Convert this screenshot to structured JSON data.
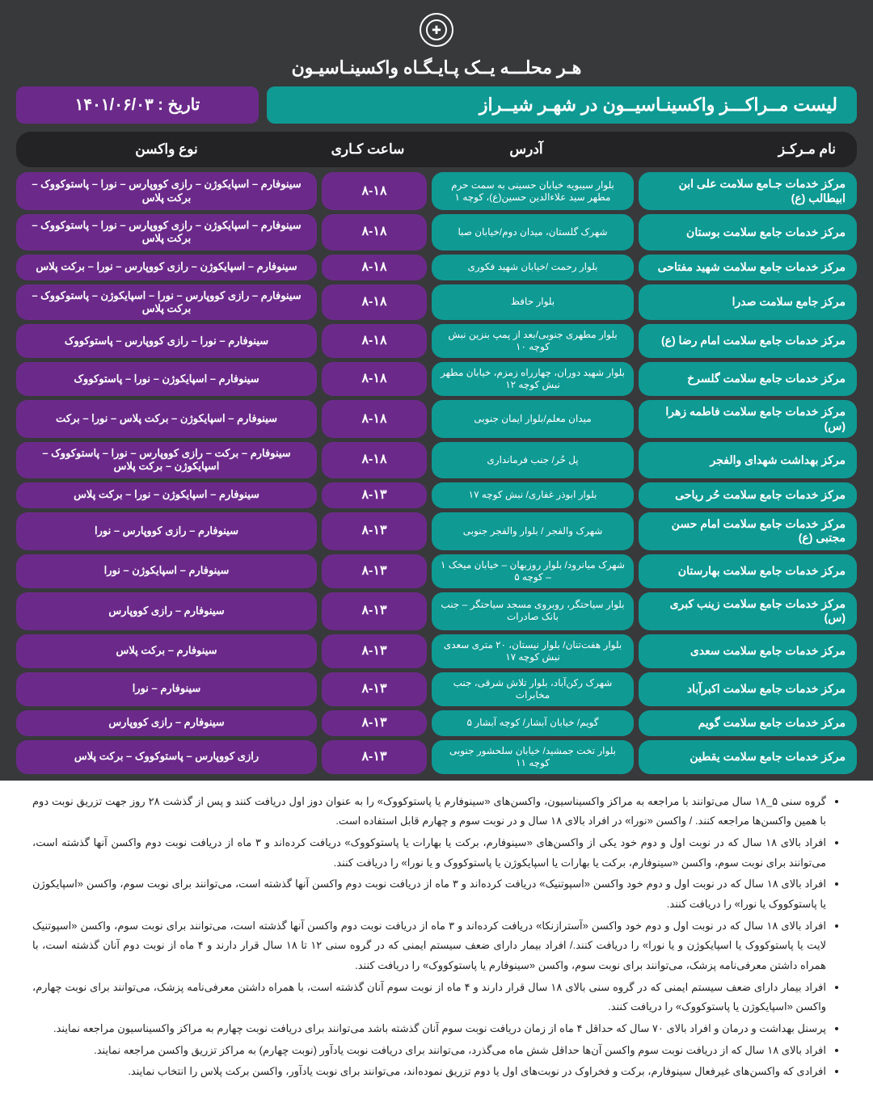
{
  "slogan": "هـر محلـــه یــک پـایـگـاه واکسینـاسیـون",
  "title": "لیست مــراکـــز واکسینـاسیــون در شهـر شیــراز",
  "date_label": "تاریخ : ۱۴۰۱/۰۶/۰۳",
  "columns": {
    "center": "نام مـرکـز",
    "address": "آدرس",
    "hours": "ساعت کـاری",
    "vaccine": "نوع واکسن"
  },
  "colors": {
    "bg": "#38393b",
    "teal": "#0f9a94",
    "purple": "#6b2a8a",
    "header": "#232325",
    "white": "#ffffff"
  },
  "rows": [
    {
      "center": "مرکز خدمات جـامع سلامت علی ابن ابیطالب (ع)",
      "address": "بلوار سیبویه خیابان حسینی به سمت حرم مطهر سید علاء‌الدین حسین(ع)، کوچه ۱",
      "hours": "۸-۱۸",
      "vaccine": "سینوفارم – اسپایکوژن – رازی کووپارس – نورا – پاستوکووک – برکت پلاس"
    },
    {
      "center": "مرکز خدمات جامع سلامت بوستان",
      "address": "شهرک گلستان، میدان دوم/خیابان صبا",
      "hours": "۸-۱۸",
      "vaccine": "سینوفارم – اسپایکوژن – رازی کووپارس – نورا – پاستوکووک – برکت پلاس"
    },
    {
      "center": "مرکز خدمات جامع سلامت شهید مفتاحی",
      "address": "بلوار رحمت /خیابان شهید فکوری",
      "hours": "۸-۱۸",
      "vaccine": "سینوفارم – اسپایکوژن – رازی کووپارس – نورا – برکت پلاس"
    },
    {
      "center": "مرکز جامع سلامت صدرا",
      "address": "بلوار حافظ",
      "hours": "۸-۱۸",
      "vaccine": "سینوفارم – رازی کووپارس – نورا – اسپایکوژن – پاستوکووک – برکت پلاس"
    },
    {
      "center": "مرکز خدمات جامع سلامت امام رضا (ع)",
      "address": "بلوار مطهری جنوبی/بعد از پمپ بنزین نبش کوچه ۱۰",
      "hours": "۸-۱۸",
      "vaccine": "سینوفارم – نورا – رازی کووپارس – پاستوکووک"
    },
    {
      "center": "مرکز خدمات جامع سلامت گلسرخ",
      "address": "بلوار شهید دوران، چهارراه زمزم، خیابان مطهر نبش کوچه ۱۲",
      "hours": "۸-۱۸",
      "vaccine": "سینوفارم – اسپایکوژن – نورا – پاستوکووک"
    },
    {
      "center": "مرکز خدمات جامع سلامت فاطمه زهرا (س)",
      "address": "میدان معلم/بلوار ایمان جنوبی",
      "hours": "۸-۱۸",
      "vaccine": "سینوفارم – اسپایکوژن – برکت پلاس – نورا – برکت"
    },
    {
      "center": "مرکز بهداشت شهدای والفجر",
      "address": "پل حُر/ جنب فرمانداری",
      "hours": "۸-۱۸",
      "vaccine": "سینوفارم – برکت – رازی کووپارس – نورا – پاستوکووک – اسپایکوژن – برکت پلاس"
    },
    {
      "center": "مرکز خدمات جامع سلامت حُر ریاحی",
      "address": "بلوار ابوذر غفاری/ نبش کوچه ۱۷",
      "hours": "۸-۱۳",
      "vaccine": "سینوفارم – اسپایکوژن – نورا – برکت پلاس"
    },
    {
      "center": "مرکز خدمات جامع سلامت امام حسن مجتبی (ع)",
      "address": "شهرک والفجر / بلوار والفجر جنوبی",
      "hours": "۸-۱۳",
      "vaccine": "سینوفارم – رازی کووپارس – نورا"
    },
    {
      "center": "مرکز خدمات جامع سلامت بهارستان",
      "address": "شهرک میانرود/ بلوار روزبهان – خیابان میخک ۱ – کوچه ۵",
      "hours": "۸-۱۳",
      "vaccine": "سینوفارم – اسپایکوژن – نورا"
    },
    {
      "center": "مرکز خدمات جامع سلامت زینب کبری (س)",
      "address": "بلوار سیاحتگر، روبروی مسجد سیاحتگر – جنب بانک صادرات",
      "hours": "۸-۱۳",
      "vaccine": "سینوفارم – رازی کووپارس"
    },
    {
      "center": "مرکز خدمات جامع سلامت سعدی",
      "address": "بلوار هفت‌تنان/ بلوار نیستان، ۲۰ متری سعدی نبش کوچه ۱۷",
      "hours": "۸-۱۳",
      "vaccine": "سینوفارم – برکت پلاس"
    },
    {
      "center": "مرکز خدمات جامع سلامت اکبرآباد",
      "address": "شهرک رکن‌آباد، بلوار تلاش شرقی، جنب مخابرات",
      "hours": "۸-۱۳",
      "vaccine": "سینوفارم – نورا"
    },
    {
      "center": "مرکز خدمات جامع سلامت گویم",
      "address": "گویم/ خیابان آبشار/ کوچه آبشار ۵",
      "hours": "۸-۱۳",
      "vaccine": "سینوفارم – رازی کووپارس"
    },
    {
      "center": "مرکز خدمات جامع سلامت یقطین",
      "address": "بلوار تخت جمشید/ خیابان سلحشور جنوبی کوچه ۱۱",
      "hours": "۸-۱۳",
      "vaccine": "رازی کووپارس – پاستوکووک – برکت پلاس"
    }
  ],
  "notes": [
    "گروه سنی ۵_۱۸ سال می‌توانند با مراجعه به مراکز واکسیناسیون، واکسن‌های «سینوفارم یا پاستوکووک» را به عنوان دوز اول دریافت کنند و پس از گذشت ۲۸ روز جهت تزریق نوبت دوم با همین واکسن‌ها مراجعه کنند. / واکسن «نورا» در افراد بالای ۱۸ سال و در نوبت سوم و چهارم قابل استفاده است.",
    "افراد بالای ۱۸ سال که در نوبت اول و دوم خود یکی از واکسن‌های «سینوفارم، برکت یا بهارات یا پاستوکووک» دریافت کرده‌اند و ۳ ماه از دریافت نوبت دوم واکسن آنها گذشته است، می‌توانند برای نوبت سوم، واکسن «سینوفارم، برکت یا بهارات یا اسپایکوژن یا پاستوکووک و یا نورا» را دریافت کنند.",
    "افراد بالای ۱۸ سال که در نوبت اول و دوم خود واکسن «اسپوتنیک» دریافت کرده‌اند و ۳ ماه از دریافت نوبت دوم واکسن آنها گذشته است، می‌توانند برای نوبت سوم، واکسن «اسپایکوژن یا پاستوکووک یا نورا» را دریافت کنند.",
    "افراد بالای ۱۸ سال که در نوبت اول و دوم خود واکسن «آسترازنکا» دریافت کرده‌اند و ۳ ماه از دریافت نوبت دوم واکسن آنها گذشته است، می‌توانند برای نوبت سوم، واکسن «اسپوتنیک لایت یا پاستوکووک یا اسپایکوژن و یا نورا» را دریافت کنند./ افراد بیمار دارای ضعف سیستم ایمنی که در گروه سنی ۱۲ تا ۱۸ سال قرار دارند و ۴ ماه از نوبت دوم آنان گذشته است، با همراه داشتن معرفی‌نامه پزشک، می‌توانند برای نوبت سوم، واکسن «سینوفارم یا پاستوکووک» را دریافت کنند.",
    "افراد بیمار دارای ضعف سیستم ایمنی که در گروه سنی بالای ۱۸ سال قرار دارند و ۴ ماه از نوبت سوم آنان گذشته است، با همراه داشتن معرفی‌نامه پزشک، می‌توانند برای نوبت چهارم، واکسن «اسپایکوژن یا پاستوکووک» را دریافت کنند.",
    "پرسنل بهداشت و درمان و افراد بالای ۷۰ سال که حداقل ۴ ماه از زمان دریافت نوبت سوم آنان گذشته باشد می‌توانند برای دریافت نوبت چهارم به مراکز واکسیناسیون مراجعه نمایند.",
    "افراد بالای ۱۸ سال که از دریافت نوبت سوم واکسن آن‌ها حداقل شش ماه می‌گذرد، می‌توانند برای دریافت نوبت یادآور (نوبت چهارم) به مراکز تزریق واکسن مراجعه نمایند.",
    "افرادی که واکسن‌های غیرفعال سینوفارم، برکت و فخراوک در نوبت‌های اول یا دوم تزریق نموده‌اند، می‌توانند برای نوبت یادآور، واکسن برکت پلاس را انتخاب نمایند."
  ]
}
